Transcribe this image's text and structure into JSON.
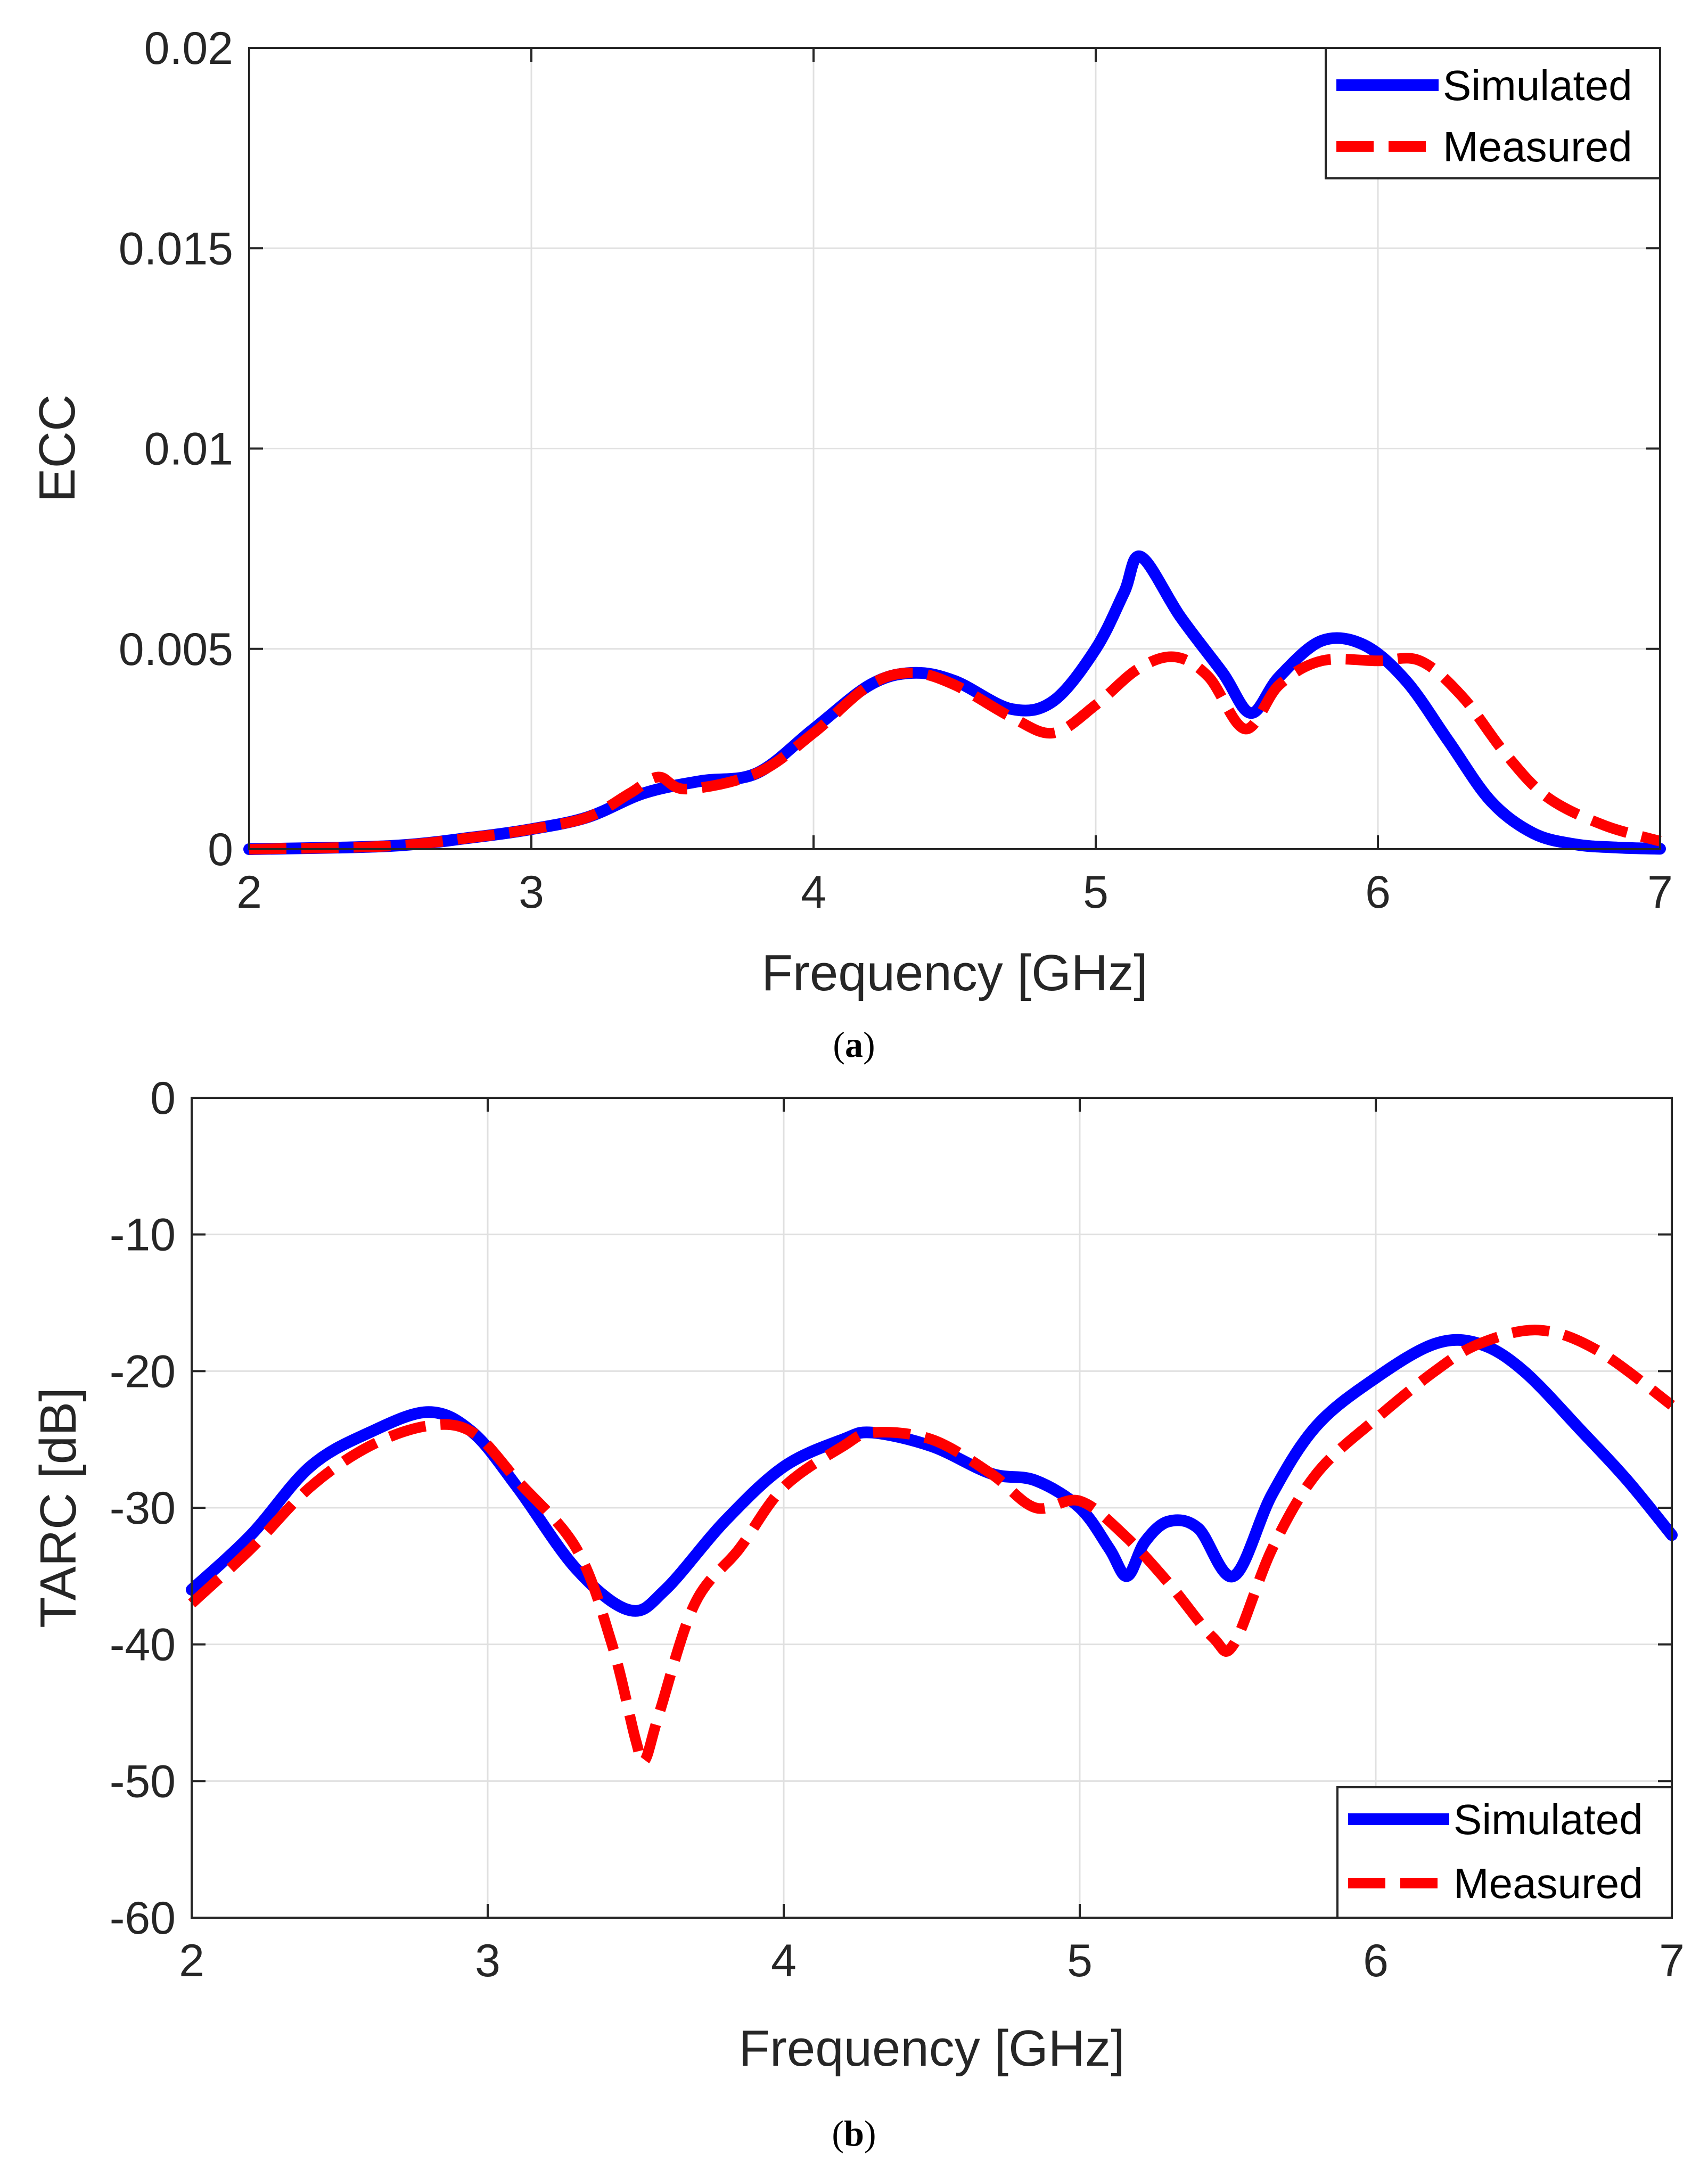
{
  "chart_data": [
    {
      "type": "line",
      "caption": "a",
      "title": "",
      "xlabel": "Frequency [GHz]",
      "ylabel": "ECC",
      "xlim": [
        2,
        7
      ],
      "ylim": [
        0,
        0.02
      ],
      "xticks": [
        2,
        3,
        4,
        5,
        6,
        7
      ],
      "xtick_labels": [
        "2",
        "3",
        "4",
        "5",
        "6",
        "7"
      ],
      "yticks": [
        0,
        0.005,
        0.01,
        0.015,
        0.02
      ],
      "ytick_labels": [
        "0",
        "0.005",
        "0.01",
        "0.015",
        "0.02"
      ],
      "grid": true,
      "legend_position": "top-right",
      "series": [
        {
          "name": "Simulated",
          "color": "#0000ff",
          "style": "solid",
          "x": [
            2.0,
            2.5,
            2.8,
            3.0,
            3.2,
            3.4,
            3.6,
            3.8,
            4.0,
            4.2,
            4.35,
            4.5,
            4.7,
            4.85,
            5.0,
            5.1,
            5.16,
            5.3,
            5.45,
            5.55,
            5.65,
            5.8,
            5.95,
            6.1,
            6.25,
            6.4,
            6.55,
            6.7,
            6.85,
            7.0
          ],
          "y": [
            0.0,
            8e-05,
            0.0003,
            0.0005,
            0.0008,
            0.0014,
            0.0017,
            0.0019,
            0.003,
            0.0041,
            0.0044,
            0.0042,
            0.0035,
            0.0037,
            0.005,
            0.0064,
            0.0073,
            0.0058,
            0.0044,
            0.0034,
            0.0043,
            0.0052,
            0.0051,
            0.0042,
            0.0027,
            0.0012,
            0.0004,
            0.00012,
            4e-05,
            1e-05
          ]
        },
        {
          "name": "Measured",
          "color": "#ff0000",
          "style": "dashed",
          "x": [
            2.0,
            2.5,
            2.8,
            3.0,
            3.2,
            3.35,
            3.45,
            3.55,
            3.8,
            4.0,
            4.2,
            4.35,
            4.5,
            4.7,
            4.85,
            5.0,
            5.15,
            5.28,
            5.4,
            5.53,
            5.65,
            5.8,
            6.0,
            6.15,
            6.3,
            6.45,
            6.6,
            6.8,
            7.0
          ],
          "y": [
            0.0,
            8e-05,
            0.0003,
            0.0005,
            0.0008,
            0.0014,
            0.0018,
            0.0015,
            0.0019,
            0.0029,
            0.0041,
            0.0044,
            0.0041,
            0.0033,
            0.0029,
            0.0036,
            0.0045,
            0.0048,
            0.0043,
            0.003,
            0.0041,
            0.0047,
            0.0047,
            0.0047,
            0.0038,
            0.0024,
            0.0013,
            0.0006,
            0.0002
          ]
        }
      ]
    },
    {
      "type": "line",
      "caption": "b",
      "title": "",
      "xlabel": "Frequency [GHz]",
      "ylabel": "TARC [dB]",
      "xlim": [
        2,
        7
      ],
      "ylim": [
        -60,
        0
      ],
      "xticks": [
        2,
        3,
        4,
        5,
        6,
        7
      ],
      "xtick_labels": [
        "2",
        "3",
        "4",
        "5",
        "6",
        "7"
      ],
      "yticks": [
        0,
        -10,
        -20,
        -30,
        -40,
        -50,
        -60
      ],
      "ytick_labels": [
        "0",
        "-10",
        "-20",
        "-30",
        "-40",
        "-50",
        "-60"
      ],
      "grid": true,
      "legend_position": "bottom-right",
      "series": [
        {
          "name": "Simulated",
          "color": "#0000ff",
          "style": "solid",
          "x": [
            2.0,
            2.2,
            2.4,
            2.6,
            2.8,
            2.95,
            3.1,
            3.3,
            3.48,
            3.6,
            3.8,
            4.0,
            4.2,
            4.3,
            4.5,
            4.7,
            4.85,
            5.0,
            5.1,
            5.16,
            5.22,
            5.3,
            5.4,
            5.52,
            5.65,
            5.8,
            6.0,
            6.2,
            6.35,
            6.5,
            6.7,
            6.85,
            7.0
          ],
          "y": [
            -36,
            -32,
            -27,
            -24.5,
            -23,
            -24.5,
            -28.5,
            -34.5,
            -37.5,
            -36,
            -31,
            -27,
            -25,
            -24.5,
            -25.5,
            -27.5,
            -28,
            -30,
            -33,
            -35,
            -32.5,
            -31,
            -31.5,
            -35,
            -29,
            -24,
            -20.5,
            -18,
            -18,
            -20,
            -24.5,
            -28,
            -32
          ]
        },
        {
          "name": "Measured",
          "color": "#ff0000",
          "style": "dashed",
          "x": [
            2.0,
            2.2,
            2.4,
            2.6,
            2.8,
            2.95,
            3.1,
            3.3,
            3.42,
            3.5,
            3.53,
            3.58,
            3.7,
            3.85,
            4.0,
            4.2,
            4.3,
            4.5,
            4.7,
            4.85,
            5.0,
            5.15,
            5.3,
            5.45,
            5.52,
            5.65,
            5.8,
            6.0,
            6.2,
            6.35,
            6.55,
            6.75,
            7.0
          ],
          "y": [
            -37,
            -33,
            -28.5,
            -25.5,
            -24,
            -24.5,
            -28,
            -33,
            -40,
            -47,
            -48.5,
            -45,
            -37,
            -33,
            -28.5,
            -25.5,
            -24.5,
            -25,
            -27.5,
            -30,
            -29.5,
            -32,
            -35.5,
            -39.5,
            -40,
            -33,
            -27.5,
            -23.5,
            -20,
            -18,
            -17,
            -18.5,
            -22.5
          ]
        }
      ]
    }
  ]
}
